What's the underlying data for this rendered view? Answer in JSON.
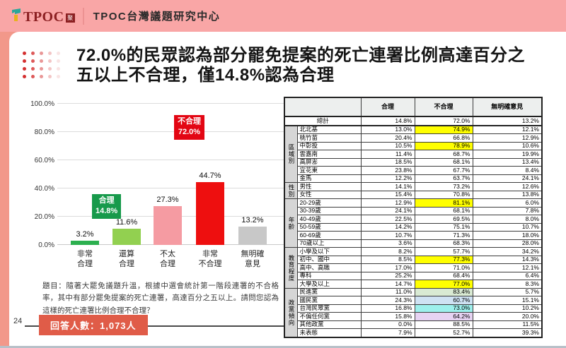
{
  "header": {
    "logo_text": "TPOC",
    "logo_seal": "聚",
    "org_name": "TPOC台灣議題研究中心"
  },
  "title": {
    "line1": "72.0%的民眾認為部分罷免提案的死亡連署比例高達百分之",
    "line2": "五以上不合理，僅14.8%認為合理"
  },
  "question": "題目：隨著大罷免議題升溫，根據中選會統計第一階段連署的不合格率，其中有部分罷免提案的死亡連署，高達百分之五以上。請問您認為這樣的死亡連署比例合理不合理？",
  "footer": {
    "page_number": "24",
    "respondents": "回答人數：1,073人"
  },
  "colors": {
    "header_pink": "#f9a6a6",
    "strip_salmon": "#f2988a",
    "accent_orange": "#e05c48",
    "approve_green": "#179a4b",
    "disapprove_red": "#e30613",
    "highlight_yellow": "#ffff00"
  },
  "chart_data": {
    "type": "bar",
    "title": "",
    "xlabel": "",
    "ylabel": "",
    "ylim": [
      0,
      100
    ],
    "grid": true,
    "ytick_labels": [
      "0.0%",
      "20.0%",
      "40.0%",
      "60.0%",
      "80.0%",
      "100.0%"
    ],
    "categories": [
      [
        "非常",
        "合理"
      ],
      [
        "還算",
        "合理"
      ],
      [
        "不太",
        "合理"
      ],
      [
        "非常",
        "不合理"
      ],
      [
        "無明確",
        "意見"
      ]
    ],
    "values": [
      3.2,
      11.6,
      27.3,
      44.7,
      13.2
    ],
    "value_labels": [
      "3.2%",
      "11.6%",
      "27.3%",
      "44.7%",
      "13.2%"
    ],
    "bar_colors": [
      "#2cb04f",
      "#92d050",
      "#f59ba2",
      "#ee0f0f",
      "#c8c8c8"
    ],
    "annotations": [
      {
        "lines": [
          "合理",
          "14.8%"
        ],
        "bg": "#179a4b"
      },
      {
        "lines": [
          "不合理",
          "72.0%"
        ],
        "bg": "#e30613"
      }
    ]
  },
  "table": {
    "header": [
      "合理",
      "不合理",
      "無明確意見"
    ],
    "total": {
      "label": "總計",
      "values": [
        "14.8%",
        "72.0%",
        "13.2%"
      ]
    },
    "groups": [
      {
        "name": "區域別",
        "rows": [
          {
            "label": "北北基",
            "values": [
              "13.0%",
              "74.9%",
              "12.1%"
            ],
            "hl": [
              null,
              "#ffff00",
              null
            ]
          },
          {
            "label": "桃竹苗",
            "values": [
              "20.4%",
              "66.8%",
              "12.9%"
            ],
            "hl": [
              null,
              null,
              null
            ]
          },
          {
            "label": "中彰投",
            "values": [
              "10.5%",
              "78.9%",
              "10.6%"
            ],
            "hl": [
              null,
              "#ffff00",
              null
            ]
          },
          {
            "label": "雲嘉南",
            "values": [
              "11.4%",
              "68.7%",
              "19.9%"
            ],
            "hl": [
              null,
              null,
              null
            ]
          },
          {
            "label": "高屏澎",
            "values": [
              "18.5%",
              "68.1%",
              "13.4%"
            ],
            "hl": [
              null,
              null,
              null
            ]
          },
          {
            "label": "宜花東",
            "values": [
              "23.8%",
              "67.7%",
              "8.4%"
            ],
            "hl": [
              null,
              null,
              null
            ]
          },
          {
            "label": "金馬",
            "values": [
              "12.2%",
              "63.7%",
              "24.1%"
            ],
            "hl": [
              null,
              null,
              null
            ]
          }
        ]
      },
      {
        "name": "性別",
        "rows": [
          {
            "label": "男性",
            "values": [
              "14.1%",
              "73.2%",
              "12.6%"
            ],
            "hl": [
              null,
              null,
              null
            ]
          },
          {
            "label": "女性",
            "values": [
              "15.4%",
              "70.8%",
              "13.8%"
            ],
            "hl": [
              null,
              null,
              null
            ]
          }
        ]
      },
      {
        "name": "年齡",
        "rows": [
          {
            "label": "20-29歲",
            "values": [
              "12.9%",
              "81.1%",
              "6.0%"
            ],
            "hl": [
              null,
              "#ffff00",
              null
            ]
          },
          {
            "label": "30-39歲",
            "values": [
              "24.1%",
              "68.1%",
              "7.8%"
            ],
            "hl": [
              null,
              null,
              null
            ]
          },
          {
            "label": "40-49歲",
            "values": [
              "22.5%",
              "69.5%",
              "8.0%"
            ],
            "hl": [
              null,
              null,
              null
            ]
          },
          {
            "label": "50-59歲",
            "values": [
              "14.2%",
              "75.1%",
              "10.7%"
            ],
            "hl": [
              null,
              null,
              null
            ]
          },
          {
            "label": "60-69歲",
            "values": [
              "10.7%",
              "71.3%",
              "18.0%"
            ],
            "hl": [
              null,
              null,
              null
            ]
          },
          {
            "label": "70歲以上",
            "values": [
              "3.6%",
              "68.3%",
              "28.0%"
            ],
            "hl": [
              null,
              null,
              null
            ]
          }
        ]
      },
      {
        "name": "教育程度",
        "rows": [
          {
            "label": "小學及以下",
            "values": [
              "8.2%",
              "57.7%",
              "34.2%"
            ],
            "hl": [
              null,
              null,
              null
            ]
          },
          {
            "label": "初中、國中",
            "values": [
              "8.5%",
              "77.3%",
              "14.3%"
            ],
            "hl": [
              null,
              "#ffff00",
              null
            ]
          },
          {
            "label": "高中、高職",
            "values": [
              "17.0%",
              "71.0%",
              "12.1%"
            ],
            "hl": [
              null,
              null,
              null
            ]
          },
          {
            "label": "專科",
            "values": [
              "25.2%",
              "68.4%",
              "6.4%"
            ],
            "hl": [
              null,
              null,
              null
            ]
          },
          {
            "label": "大學及以上",
            "values": [
              "14.7%",
              "77.0%",
              "8.3%"
            ],
            "hl": [
              null,
              "#ffff00",
              null
            ]
          }
        ]
      },
      {
        "name": "政黨傾向",
        "rows": [
          {
            "label": "民進黨",
            "values": [
              "11.0%",
              "83.4%",
              "5.7%"
            ],
            "hl": [
              null,
              "#d9ead3",
              null
            ]
          },
          {
            "label": "國民黨",
            "values": [
              "24.3%",
              "60.7%",
              "15.1%"
            ],
            "hl": [
              null,
              "#cfe2f3",
              null
            ]
          },
          {
            "label": "台灣民眾黨",
            "values": [
              "16.8%",
              "73.0%",
              "10.2%"
            ],
            "hl": [
              null,
              "#9df0ec",
              null
            ]
          },
          {
            "label": "不偏任何黨",
            "values": [
              "15.8%",
              "64.2%",
              "20.0%"
            ],
            "hl": [
              null,
              "#e6d3f2",
              null
            ]
          },
          {
            "label": "其他政黨",
            "values": [
              "0.0%",
              "88.5%",
              "11.5%"
            ],
            "hl": [
              null,
              null,
              null
            ]
          },
          {
            "label": "未表態",
            "values": [
              "7.9%",
              "52.7%",
              "39.3%"
            ],
            "hl": [
              null,
              null,
              null
            ]
          }
        ]
      }
    ]
  }
}
